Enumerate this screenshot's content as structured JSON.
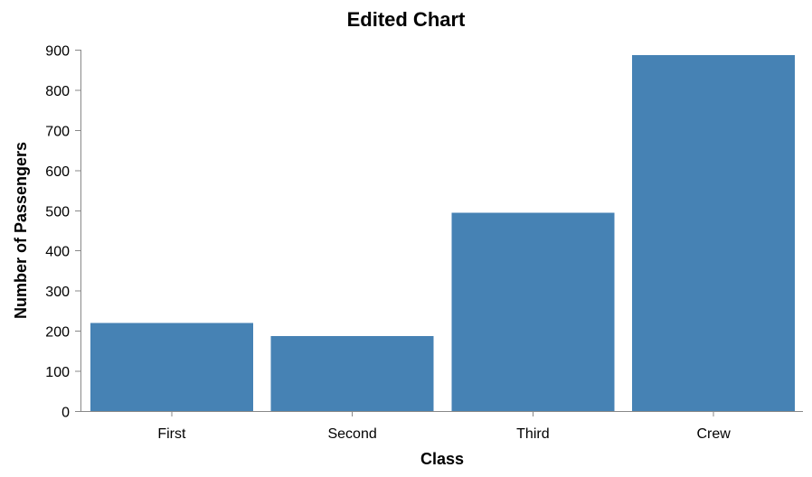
{
  "chart_data": {
    "type": "bar",
    "title": "Edited Chart",
    "xlabel": "Class",
    "ylabel": "Number of Passengers",
    "categories": [
      "First",
      "Second",
      "Third",
      "Crew"
    ],
    "values": [
      219,
      187,
      494,
      887
    ],
    "ylim": [
      0,
      900
    ],
    "yticks": [
      0,
      100,
      200,
      300,
      400,
      500,
      600,
      700,
      800,
      900
    ],
    "grid": false,
    "bar_color": "#4682b4"
  }
}
